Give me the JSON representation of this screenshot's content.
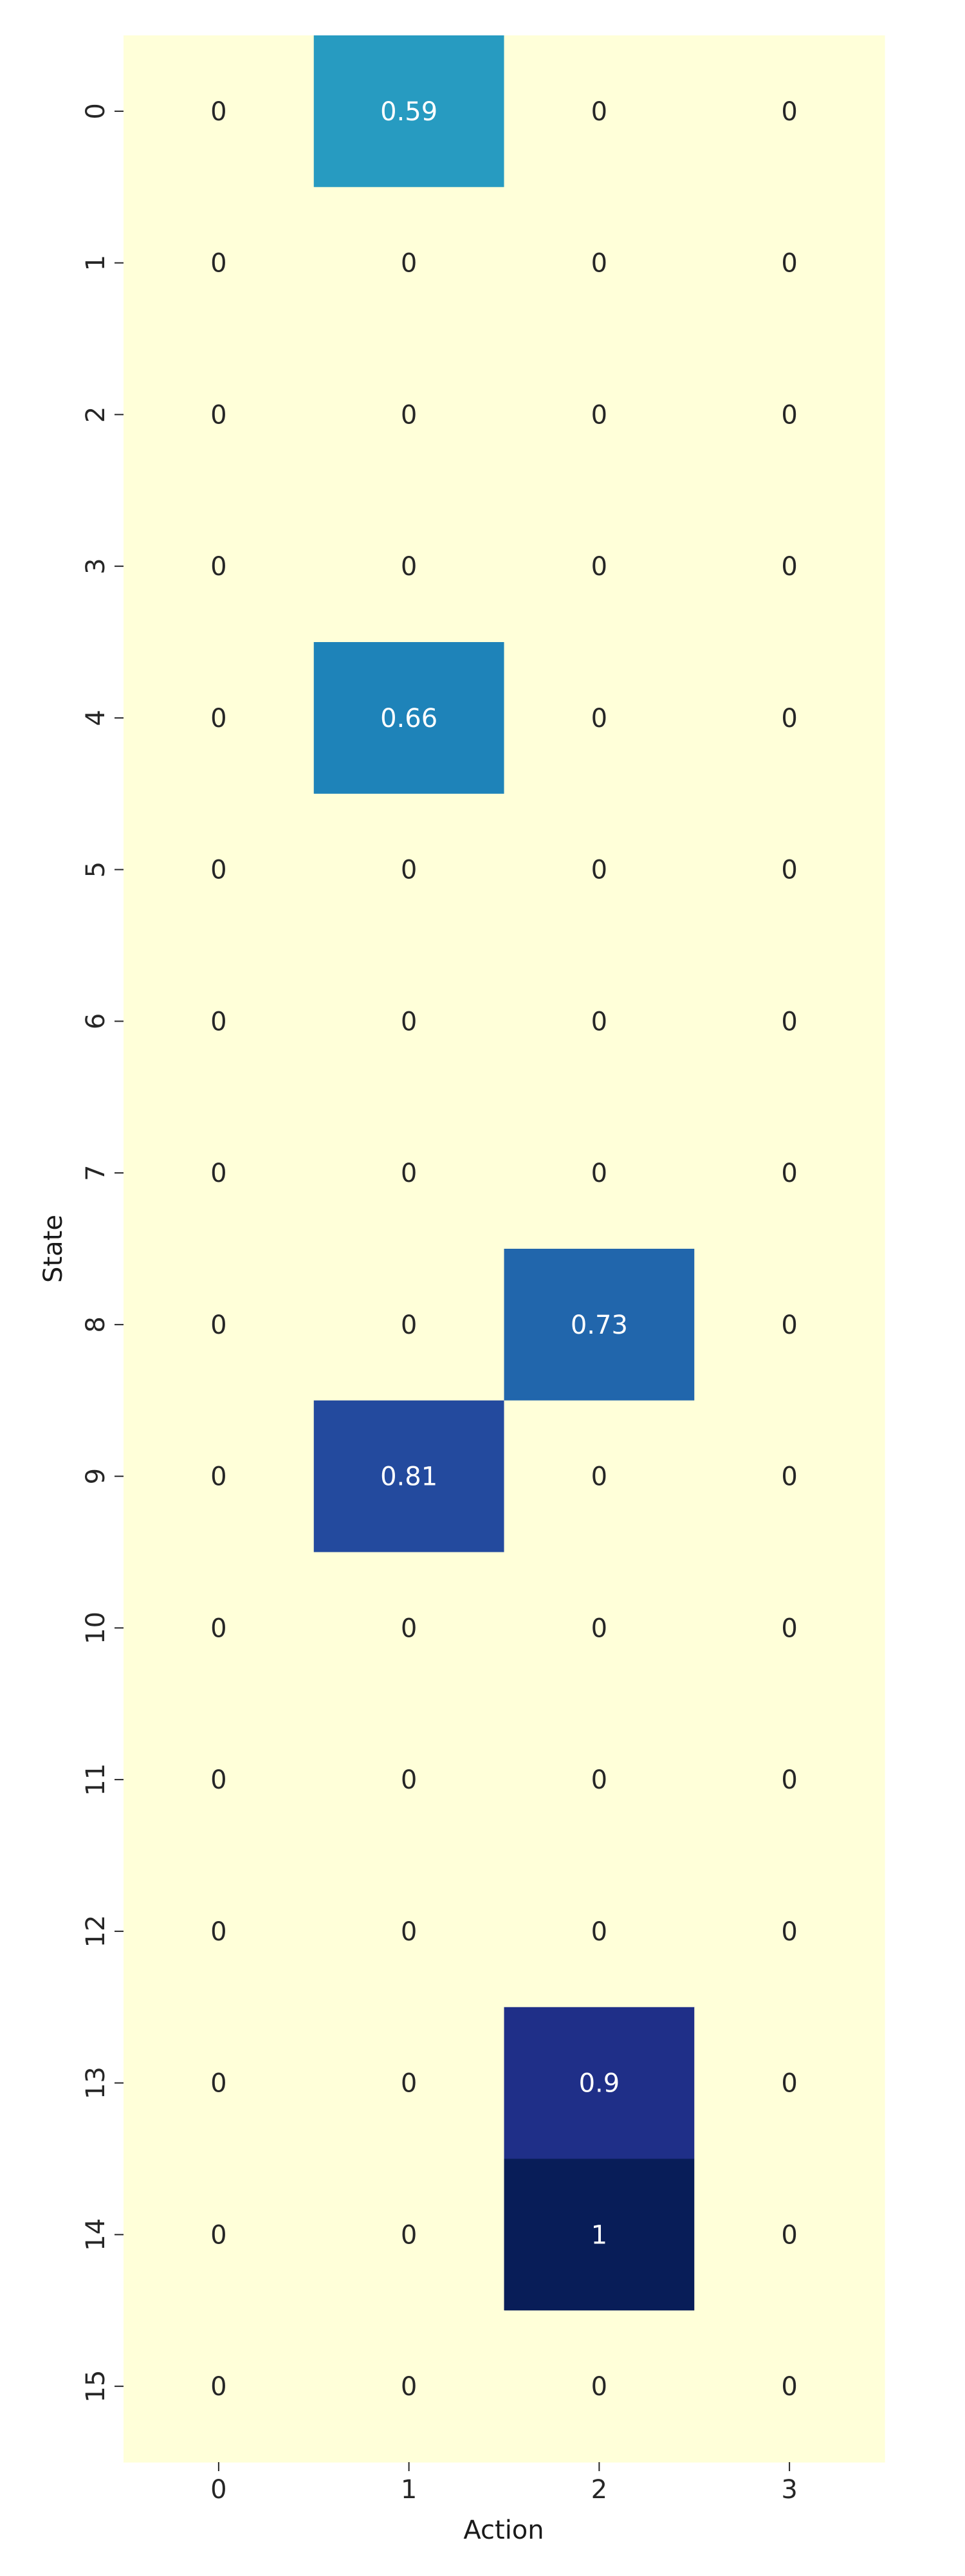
{
  "chart_data": {
    "type": "heatmap",
    "xlabel": "Action",
    "ylabel": "State",
    "x_categories": [
      "0",
      "1",
      "2",
      "3"
    ],
    "y_categories": [
      "0",
      "1",
      "2",
      "3",
      "4",
      "5",
      "6",
      "7",
      "8",
      "9",
      "10",
      "11",
      "12",
      "13",
      "14",
      "15"
    ],
    "values": [
      [
        0,
        0.59,
        0,
        0
      ],
      [
        0,
        0,
        0,
        0
      ],
      [
        0,
        0,
        0,
        0
      ],
      [
        0,
        0,
        0,
        0
      ],
      [
        0,
        0.66,
        0,
        0
      ],
      [
        0,
        0,
        0,
        0
      ],
      [
        0,
        0,
        0,
        0
      ],
      [
        0,
        0,
        0,
        0
      ],
      [
        0,
        0,
        0.73,
        0
      ],
      [
        0,
        0.81,
        0,
        0
      ],
      [
        0,
        0,
        0,
        0
      ],
      [
        0,
        0,
        0,
        0
      ],
      [
        0,
        0,
        0,
        0
      ],
      [
        0,
        0,
        0.9,
        0
      ],
      [
        0,
        0,
        1,
        0
      ],
      [
        0,
        0,
        0,
        0
      ]
    ],
    "value_range": [
      0,
      1
    ],
    "colormap": "YlGnBu",
    "colorbar": false,
    "annotations": true
  }
}
